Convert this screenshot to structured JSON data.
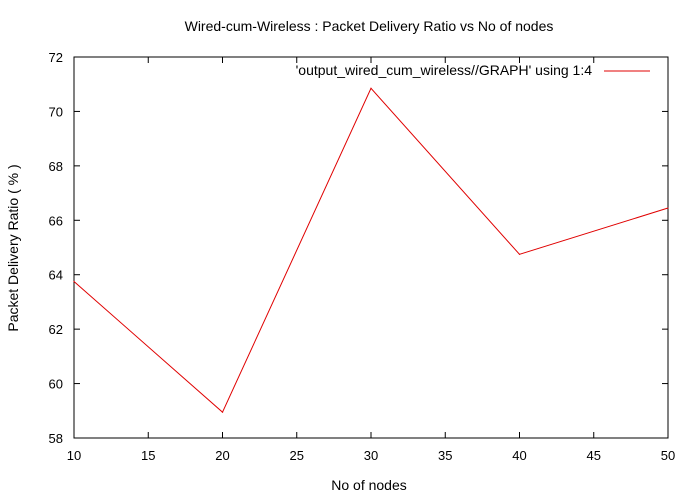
{
  "chart_data": {
    "type": "line",
    "title": "Wired-cum-Wireless : Packet Delivery Ratio vs No of nodes",
    "xlabel": "No of nodes",
    "ylabel": "Packet Delivery Ratio ( % )",
    "xlim": [
      10,
      50
    ],
    "ylim": [
      58,
      72
    ],
    "x_ticks": [
      "10",
      "15",
      "20",
      "25",
      "30",
      "35",
      "40",
      "45",
      "50"
    ],
    "y_ticks": [
      "58",
      "60",
      "62",
      "64",
      "66",
      "68",
      "70",
      "72"
    ],
    "grid": false,
    "legend_position": "top-right",
    "series": [
      {
        "name": "'output_wired_cum_wireless//GRAPH' using 1:4",
        "color": "#e00000",
        "x": [
          10,
          20,
          30,
          40,
          50
        ],
        "y": [
          63.75,
          58.95,
          70.85,
          64.75,
          66.45
        ]
      }
    ]
  }
}
